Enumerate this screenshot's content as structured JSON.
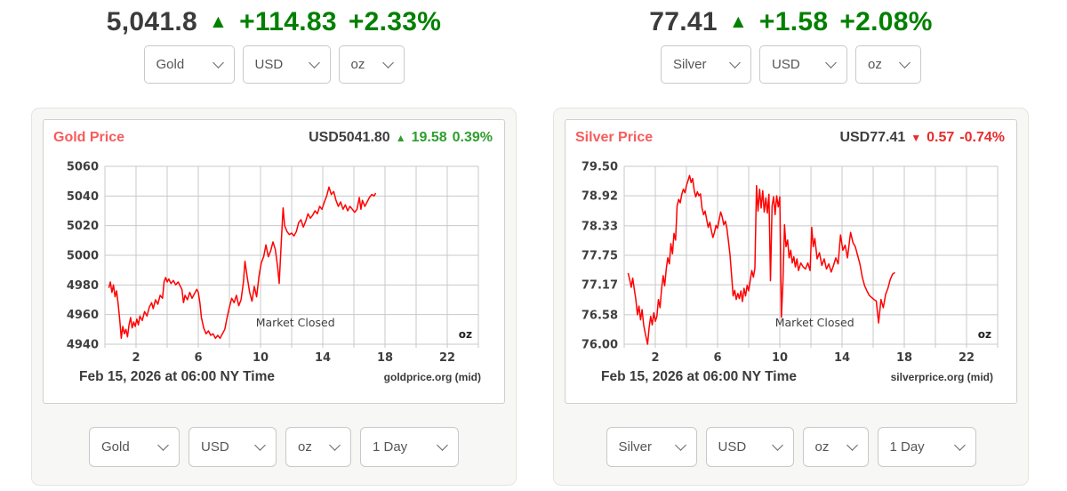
{
  "colors": {
    "price_text": "#3b3b3b",
    "up_green": "#008000",
    "title_red": "#f75c5c",
    "chart_up_green": "#2f9e2f",
    "chart_down_red": "#e82c2c",
    "axis_text": "#3f3f3f",
    "grid": "#c8c8c8",
    "select_text": "#555555"
  },
  "widgets": [
    {
      "id": "gold",
      "headline": {
        "price": "5,041.8",
        "direction": "up",
        "arrow": "▲",
        "change": "+114.83",
        "change_pct": "+2.33%"
      },
      "top_selects": [
        {
          "name": "metal",
          "value": "Gold"
        },
        {
          "name": "currency",
          "value": "USD"
        },
        {
          "name": "unit",
          "value": "oz"
        }
      ],
      "bottom_selects": [
        {
          "name": "metal",
          "value": "Gold"
        },
        {
          "name": "currency",
          "value": "USD"
        },
        {
          "name": "unit",
          "value": "oz"
        },
        {
          "name": "range",
          "value": "1 Day"
        }
      ]
    },
    {
      "id": "silver",
      "headline": {
        "price": "77.41",
        "direction": "up",
        "arrow": "▲",
        "change": "+1.58",
        "change_pct": "+2.08%"
      },
      "top_selects": [
        {
          "name": "metal",
          "value": "Silver"
        },
        {
          "name": "currency",
          "value": "USD"
        },
        {
          "name": "unit",
          "value": "oz"
        }
      ],
      "bottom_selects": [
        {
          "name": "metal",
          "value": "Silver"
        },
        {
          "name": "currency",
          "value": "USD"
        },
        {
          "name": "unit",
          "value": "oz"
        },
        {
          "name": "range",
          "value": "1 Day"
        }
      ]
    }
  ],
  "chart_data": [
    {
      "type": "line",
      "title": "Gold Price",
      "quote": "USD5041.80",
      "direction": "up",
      "arrow": "▲",
      "change": "19.58",
      "change_pct": "0.39%",
      "market_status": "Market Closed",
      "unit_label": "oz",
      "footer_left": "Feb 15, 2026 at 06:00 NY Time",
      "footer_right": "goldprice.org (mid)",
      "line_color": "#ff0000",
      "xlim": [
        0,
        24
      ],
      "x_grid_step": 2,
      "xticks": [
        2,
        6,
        10,
        14,
        18,
        22
      ],
      "ylim": [
        4940,
        5060
      ],
      "ytick_values": [
        5060,
        5040,
        5020,
        5000,
        4980,
        4960,
        4940
      ],
      "ytick_labels": [
        "5060",
        "5040",
        "5020",
        "5000",
        "4980",
        "4960",
        "4940"
      ],
      "legend": false,
      "series_name": "Gold USD/oz",
      "points": [
        [
          0.25,
          4978
        ],
        [
          0.35,
          4982
        ],
        [
          0.45,
          4975
        ],
        [
          0.55,
          4980
        ],
        [
          0.65,
          4972
        ],
        [
          0.75,
          4976
        ],
        [
          0.85,
          4967
        ],
        [
          0.95,
          4957
        ],
        [
          1.05,
          4944
        ],
        [
          1.15,
          4952
        ],
        [
          1.25,
          4947
        ],
        [
          1.35,
          4950
        ],
        [
          1.45,
          4945
        ],
        [
          1.55,
          4953
        ],
        [
          1.65,
          4958
        ],
        [
          1.75,
          4951
        ],
        [
          1.85,
          4955
        ],
        [
          1.95,
          4952
        ],
        [
          2.05,
          4957
        ],
        [
          2.15,
          4953
        ],
        [
          2.25,
          4959
        ],
        [
          2.4,
          4956
        ],
        [
          2.55,
          4962
        ],
        [
          2.7,
          4959
        ],
        [
          2.85,
          4965
        ],
        [
          3.0,
          4968
        ],
        [
          3.1,
          4964
        ],
        [
          3.25,
          4970
        ],
        [
          3.4,
          4967
        ],
        [
          3.55,
          4973
        ],
        [
          3.7,
          4971
        ],
        [
          3.8,
          4982
        ],
        [
          3.9,
          4985
        ],
        [
          4.0,
          4982
        ],
        [
          4.1,
          4984
        ],
        [
          4.25,
          4981
        ],
        [
          4.4,
          4983
        ],
        [
          4.55,
          4980
        ],
        [
          4.7,
          4982
        ],
        [
          4.85,
          4979
        ],
        [
          4.95,
          4977
        ],
        [
          5.05,
          4968
        ],
        [
          5.15,
          4973
        ],
        [
          5.3,
          4970
        ],
        [
          5.45,
          4975
        ],
        [
          5.6,
          4971
        ],
        [
          5.75,
          4974
        ],
        [
          5.9,
          4977
        ],
        [
          6.0,
          4975
        ],
        [
          6.1,
          4968
        ],
        [
          6.2,
          4958
        ],
        [
          6.35,
          4951
        ],
        [
          6.5,
          4947
        ],
        [
          6.65,
          4949
        ],
        [
          6.8,
          4946
        ],
        [
          6.95,
          4947
        ],
        [
          7.1,
          4944
        ],
        [
          7.25,
          4946
        ],
        [
          7.4,
          4944
        ],
        [
          7.55,
          4947
        ],
        [
          7.7,
          4950
        ],
        [
          7.85,
          4958
        ],
        [
          8.0,
          4965
        ],
        [
          8.15,
          4971
        ],
        [
          8.3,
          4968
        ],
        [
          8.45,
          4973
        ],
        [
          8.6,
          4966
        ],
        [
          8.75,
          4970
        ],
        [
          8.9,
          4982
        ],
        [
          9.0,
          4996
        ],
        [
          9.15,
          4985
        ],
        [
          9.3,
          4975
        ],
        [
          9.45,
          4969
        ],
        [
          9.6,
          4979
        ],
        [
          9.75,
          4972
        ],
        [
          9.9,
          4986
        ],
        [
          10.05,
          4995
        ],
        [
          10.2,
          4999
        ],
        [
          10.35,
          5007
        ],
        [
          10.5,
          4999
        ],
        [
          10.65,
          5003
        ],
        [
          10.8,
          5009
        ],
        [
          10.95,
          5004
        ],
        [
          11.1,
          4992
        ],
        [
          11.2,
          4981
        ],
        [
          11.35,
          5012
        ],
        [
          11.45,
          5032
        ],
        [
          11.55,
          5020
        ],
        [
          11.7,
          5016
        ],
        [
          11.85,
          5014
        ],
        [
          12.0,
          5015
        ],
        [
          12.15,
          5013
        ],
        [
          12.3,
          5016
        ],
        [
          12.45,
          5022
        ],
        [
          12.6,
          5024
        ],
        [
          12.75,
          5019
        ],
        [
          12.9,
          5023
        ],
        [
          13.05,
          5028
        ],
        [
          13.2,
          5025
        ],
        [
          13.35,
          5027
        ],
        [
          13.5,
          5030
        ],
        [
          13.65,
          5028
        ],
        [
          13.8,
          5033
        ],
        [
          13.95,
          5031
        ],
        [
          14.1,
          5036
        ],
        [
          14.25,
          5040
        ],
        [
          14.4,
          5046
        ],
        [
          14.55,
          5041
        ],
        [
          14.7,
          5043
        ],
        [
          14.85,
          5037
        ],
        [
          15.0,
          5033
        ],
        [
          15.15,
          5036
        ],
        [
          15.3,
          5031
        ],
        [
          15.45,
          5034
        ],
        [
          15.6,
          5030
        ],
        [
          15.75,
          5033
        ],
        [
          15.9,
          5031
        ],
        [
          16.05,
          5029
        ],
        [
          16.2,
          5031
        ],
        [
          16.35,
          5039
        ],
        [
          16.45,
          5031
        ],
        [
          16.55,
          5037
        ],
        [
          16.7,
          5033
        ],
        [
          16.85,
          5036
        ],
        [
          17.0,
          5039
        ],
        [
          17.15,
          5041
        ],
        [
          17.3,
          5040
        ],
        [
          17.4,
          5042
        ]
      ]
    },
    {
      "type": "line",
      "title": "Silver Price",
      "quote": "USD77.41",
      "direction": "down",
      "arrow": "▼",
      "change": "0.57",
      "change_pct": "-0.74%",
      "market_status": "Market Closed",
      "unit_label": "oz",
      "footer_left": "Feb 15, 2026 at 06:00 NY Time",
      "footer_right": "silverprice.org (mid)",
      "line_color": "#ff0000",
      "xlim": [
        0,
        24
      ],
      "x_grid_step": 2,
      "xticks": [
        2,
        6,
        10,
        14,
        18,
        22
      ],
      "ylim": [
        76.0,
        79.5
      ],
      "ytick_values": [
        79.5,
        78.92,
        78.33,
        77.75,
        77.17,
        76.58,
        76.0
      ],
      "ytick_labels": [
        "79.50",
        "78.92",
        "78.33",
        "77.75",
        "77.17",
        "76.58",
        "76.00"
      ],
      "legend": false,
      "series_name": "Silver USD/oz",
      "points": [
        [
          0.25,
          77.4
        ],
        [
          0.35,
          77.28
        ],
        [
          0.45,
          77.12
        ],
        [
          0.55,
          77.3
        ],
        [
          0.65,
          77.08
        ],
        [
          0.75,
          76.88
        ],
        [
          0.85,
          76.58
        ],
        [
          0.95,
          76.75
        ],
        [
          1.05,
          76.48
        ],
        [
          1.15,
          76.68
        ],
        [
          1.25,
          76.38
        ],
        [
          1.35,
          76.22
        ],
        [
          1.5,
          76.0
        ],
        [
          1.6,
          76.32
        ],
        [
          1.7,
          76.55
        ],
        [
          1.8,
          76.38
        ],
        [
          1.9,
          76.62
        ],
        [
          2.0,
          76.45
        ],
        [
          2.1,
          76.55
        ],
        [
          2.2,
          76.88
        ],
        [
          2.3,
          76.72
        ],
        [
          2.4,
          77.08
        ],
        [
          2.5,
          77.35
        ],
        [
          2.6,
          77.15
        ],
        [
          2.7,
          77.48
        ],
        [
          2.8,
          77.7
        ],
        [
          2.9,
          77.58
        ],
        [
          3.0,
          77.98
        ],
        [
          3.1,
          77.78
        ],
        [
          3.2,
          78.18
        ],
        [
          3.3,
          78.05
        ],
        [
          3.4,
          78.72
        ],
        [
          3.5,
          78.85
        ],
        [
          3.6,
          78.78
        ],
        [
          3.7,
          78.95
        ],
        [
          3.8,
          79.05
        ],
        [
          3.9,
          78.98
        ],
        [
          4.0,
          79.12
        ],
        [
          4.1,
          79.22
        ],
        [
          4.2,
          79.32
        ],
        [
          4.3,
          79.18
        ],
        [
          4.4,
          79.26
        ],
        [
          4.5,
          79.02
        ],
        [
          4.6,
          78.9
        ],
        [
          4.7,
          79.0
        ],
        [
          4.8,
          78.92
        ],
        [
          4.9,
          78.96
        ],
        [
          5.0,
          78.68
        ],
        [
          5.1,
          78.55
        ],
        [
          5.2,
          78.62
        ],
        [
          5.3,
          78.45
        ],
        [
          5.4,
          78.3
        ],
        [
          5.5,
          78.4
        ],
        [
          5.6,
          78.24
        ],
        [
          5.7,
          78.1
        ],
        [
          5.8,
          78.2
        ],
        [
          5.9,
          78.34
        ],
        [
          6.0,
          78.28
        ],
        [
          6.1,
          78.45
        ],
        [
          6.2,
          78.6
        ],
        [
          6.3,
          78.5
        ],
        [
          6.4,
          78.35
        ],
        [
          6.5,
          78.42
        ],
        [
          6.6,
          78.28
        ],
        [
          6.7,
          78.02
        ],
        [
          6.8,
          77.76
        ],
        [
          6.9,
          77.35
        ],
        [
          7.0,
          76.95
        ],
        [
          7.1,
          77.06
        ],
        [
          7.2,
          76.88
        ],
        [
          7.3,
          77.0
        ],
        [
          7.4,
          76.9
        ],
        [
          7.5,
          77.05
        ],
        [
          7.6,
          76.84
        ],
        [
          7.7,
          77.1
        ],
        [
          7.8,
          76.95
        ],
        [
          7.9,
          77.16
        ],
        [
          8.0,
          77.05
        ],
        [
          8.1,
          77.26
        ],
        [
          8.2,
          77.45
        ],
        [
          8.3,
          77.32
        ],
        [
          8.4,
          77.5
        ],
        [
          8.5,
          79.12
        ],
        [
          8.6,
          78.62
        ],
        [
          8.7,
          79.05
        ],
        [
          8.8,
          78.68
        ],
        [
          8.9,
          79.02
        ],
        [
          9.0,
          78.6
        ],
        [
          9.1,
          78.88
        ],
        [
          9.2,
          78.58
        ],
        [
          9.3,
          78.95
        ],
        [
          9.4,
          77.25
        ],
        [
          9.5,
          78.72
        ],
        [
          9.6,
          78.9
        ],
        [
          9.7,
          78.55
        ],
        [
          9.8,
          78.92
        ],
        [
          9.9,
          78.7
        ],
        [
          10.0,
          78.9
        ],
        [
          10.1,
          76.53
        ],
        [
          10.2,
          77.2
        ],
        [
          10.3,
          78.35
        ],
        [
          10.4,
          77.92
        ],
        [
          10.5,
          78.05
        ],
        [
          10.6,
          77.7
        ],
        [
          10.7,
          77.85
        ],
        [
          10.8,
          77.6
        ],
        [
          10.9,
          77.72
        ],
        [
          11.0,
          77.52
        ],
        [
          11.1,
          77.68
        ],
        [
          11.2,
          77.45
        ],
        [
          11.35,
          77.6
        ],
        [
          11.5,
          77.52
        ],
        [
          11.65,
          77.48
        ],
        [
          11.8,
          77.6
        ],
        [
          11.95,
          77.45
        ],
        [
          12.05,
          78.3
        ],
        [
          12.15,
          77.92
        ],
        [
          12.25,
          78.08
        ],
        [
          12.4,
          77.68
        ],
        [
          12.55,
          77.8
        ],
        [
          12.7,
          77.55
        ],
        [
          12.85,
          77.68
        ],
        [
          13.0,
          77.48
        ],
        [
          13.15,
          77.58
        ],
        [
          13.3,
          77.42
        ],
        [
          13.45,
          77.55
        ],
        [
          13.6,
          77.7
        ],
        [
          13.75,
          77.58
        ],
        [
          13.9,
          78.15
        ],
        [
          14.05,
          77.85
        ],
        [
          14.2,
          77.95
        ],
        [
          14.35,
          77.7
        ],
        [
          14.55,
          78.2
        ],
        [
          14.7,
          78.0
        ],
        [
          14.85,
          77.92
        ],
        [
          15.0,
          77.75
        ],
        [
          15.15,
          77.58
        ],
        [
          15.3,
          77.32
        ],
        [
          15.45,
          77.15
        ],
        [
          15.6,
          77.05
        ],
        [
          15.75,
          76.96
        ],
        [
          15.9,
          76.92
        ],
        [
          16.05,
          76.88
        ],
        [
          16.2,
          76.85
        ],
        [
          16.35,
          76.42
        ],
        [
          16.5,
          76.88
        ],
        [
          16.65,
          76.72
        ],
        [
          16.8,
          76.98
        ],
        [
          16.95,
          77.1
        ],
        [
          17.1,
          77.28
        ],
        [
          17.25,
          77.38
        ],
        [
          17.4,
          77.41
        ]
      ]
    }
  ]
}
